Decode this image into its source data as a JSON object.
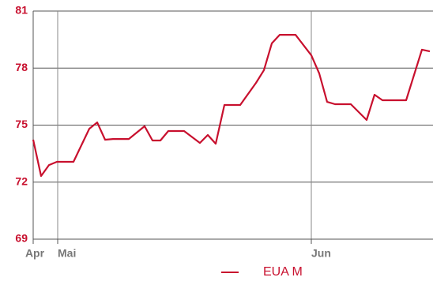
{
  "chart_data": {
    "type": "line",
    "x": [
      0,
      1,
      2,
      3,
      5.1,
      7.1,
      8.1,
      9.1,
      10.1,
      12.1,
      14.1,
      15.1,
      16.1,
      17.1,
      19.1,
      21.1,
      22.1,
      23.1,
      24.2,
      26.2,
      28.2,
      29.2,
      30.2,
      31.2,
      33.2,
      35.2,
      36.2,
      37.2,
      38.2,
      40.2,
      42.2,
      43.2,
      44.2,
      45.2,
      47.2,
      49.2,
      50.2
    ],
    "series": [
      {
        "name": "EUA M",
        "color": "#c8102e",
        "values": [
          74.23,
          72.32,
          72.9,
          73.07,
          73.07,
          74.81,
          75.14,
          74.23,
          74.27,
          74.27,
          74.94,
          74.19,
          74.19,
          74.69,
          74.69,
          74.06,
          74.48,
          74.02,
          76.06,
          76.06,
          77.22,
          77.89,
          79.3,
          79.75,
          79.75,
          78.67,
          77.72,
          76.22,
          76.1,
          76.1,
          75.27,
          76.6,
          76.31,
          76.31,
          76.31,
          78.97,
          78.88
        ]
      }
    ],
    "xlim": [
      0,
      50.6
    ],
    "xticks": [
      {
        "value": 0,
        "label": "Apr"
      },
      {
        "value": 3.1,
        "label": "Mai"
      },
      {
        "value": 35.2,
        "label": "Jun"
      }
    ],
    "ylim": [
      69,
      81
    ],
    "yticks": [
      69,
      72,
      75,
      78,
      81
    ],
    "grid": true
  }
}
